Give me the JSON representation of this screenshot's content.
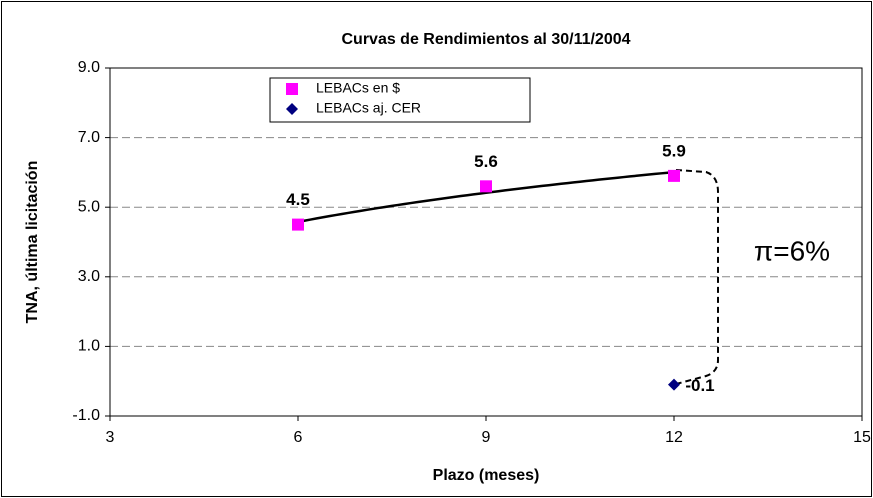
{
  "chart_data": {
    "type": "scatter",
    "title": "Curvas de Rendimientos al 30/11/2004",
    "x_label": "Plazo (meses)",
    "y_label": "TNA, última licitación",
    "annotation": "π=6%",
    "xlim": [
      3,
      15
    ],
    "xticks": [
      3,
      6,
      9,
      12,
      15
    ],
    "ylim": [
      -1,
      9
    ],
    "yticks": [
      {
        "value": -1,
        "label": "-1.0"
      },
      {
        "value": 1,
        "label": "1.0"
      },
      {
        "value": 3,
        "label": "3.0"
      },
      {
        "value": 5,
        "label": "5.0"
      },
      {
        "value": 7,
        "label": "7.0"
      },
      {
        "value": 9,
        "label": "9.0"
      }
    ],
    "grid": true,
    "series": [
      {
        "name": "LEBACs en $",
        "color": "#ff00ff",
        "marker": "square",
        "x": [
          6,
          9,
          12
        ],
        "values": [
          4.5,
          5.6,
          5.9
        ]
      },
      {
        "name": "LEBACs aj. CER",
        "color": "#000080",
        "marker": "diamond",
        "x": [
          12
        ],
        "values": [
          -0.1
        ]
      }
    ]
  }
}
